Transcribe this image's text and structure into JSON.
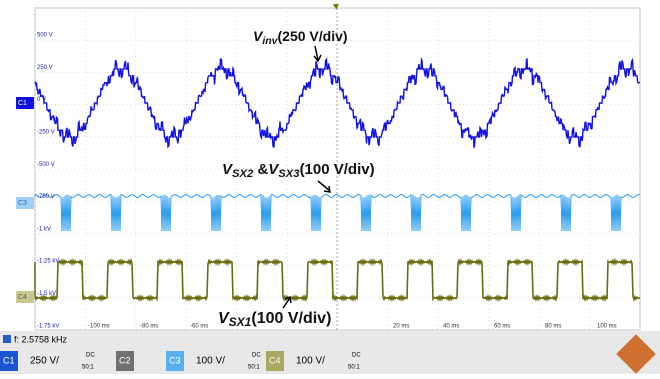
{
  "screen": {
    "y_labels": [
      "500 V",
      "250 V",
      "0 V",
      "-250 V",
      "-500 V",
      "-750 V",
      "-1 kV",
      "-1.25 kV",
      "-1.5 kV",
      "-1.75 kV"
    ],
    "x_labels": [
      "-100 ms",
      "-80 ms",
      "-60 ms",
      "20 ms",
      "40 ms",
      "60 ms",
      "80 ms",
      "100 ms"
    ],
    "channel_markers": [
      "C1",
      "C3",
      "C4"
    ],
    "annotations": [
      [
        {
          "text": "V"
        },
        {
          "sub": "inv"
        },
        {
          "text": "(250 V/div)"
        }
      ],
      [
        {
          "text": "V"
        },
        {
          "sub": "SX2"
        },
        {
          "text": " &"
        },
        {
          "text": "V"
        },
        {
          "sub": "SX3"
        },
        {
          "text": "(100 V/div)"
        }
      ],
      [
        {
          "text": "V"
        },
        {
          "sub": "SX1"
        },
        {
          "text": "(100 V/div)"
        }
      ]
    ]
  },
  "status": {
    "frequency": "f: 2.5758 kHz",
    "channels": [
      {
        "name": "C1",
        "scale": "250 V/",
        "coupling": "DC",
        "probe": "50:1"
      },
      {
        "name": "C2"
      },
      {
        "name": "C3",
        "scale": "100 V/",
        "coupling": "DC",
        "probe": "50:1"
      },
      {
        "name": "C4",
        "scale": "100 V/",
        "coupling": "DC",
        "probe": "50:1"
      }
    ]
  }
}
